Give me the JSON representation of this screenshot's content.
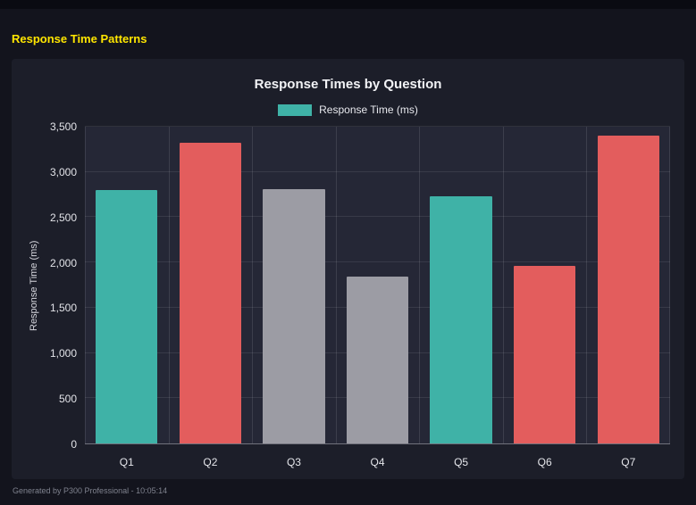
{
  "page": {
    "title": "Response Time Patterns",
    "footer": "Generated by P300 Professional - 10:05:14"
  },
  "colors": {
    "accent_yellow": "#ffe600",
    "teal": "#3fb2a7",
    "red": "#e35d5d",
    "gray": "#9c9ca4",
    "panel_bg": "#1c1e29",
    "plot_bg": "#252736",
    "page_bg": "#13141d"
  },
  "chart": {
    "title": "Response Times by Question",
    "legend_label": "Response Time (ms)",
    "ylabel": "Response Time (ms)"
  },
  "chart_data": {
    "type": "bar",
    "title": "Response Times by Question",
    "categories": [
      "Q1",
      "Q2",
      "Q3",
      "Q4",
      "Q5",
      "Q6",
      "Q7"
    ],
    "series": [
      {
        "name": "Response Time (ms)",
        "values": [
          2800,
          3320,
          2810,
          1840,
          2730,
          1960,
          3400
        ]
      }
    ],
    "bar_colors": [
      "#3fb2a7",
      "#e35d5d",
      "#9c9ca4",
      "#9c9ca4",
      "#3fb2a7",
      "#e35d5d",
      "#e35d5d"
    ],
    "xlabel": "",
    "ylabel": "Response Time (ms)",
    "ylim": [
      0,
      3500
    ],
    "yticks": [
      0,
      500,
      1000,
      1500,
      2000,
      2500,
      3000,
      3500
    ],
    "grid": true,
    "legend_position": "top"
  }
}
